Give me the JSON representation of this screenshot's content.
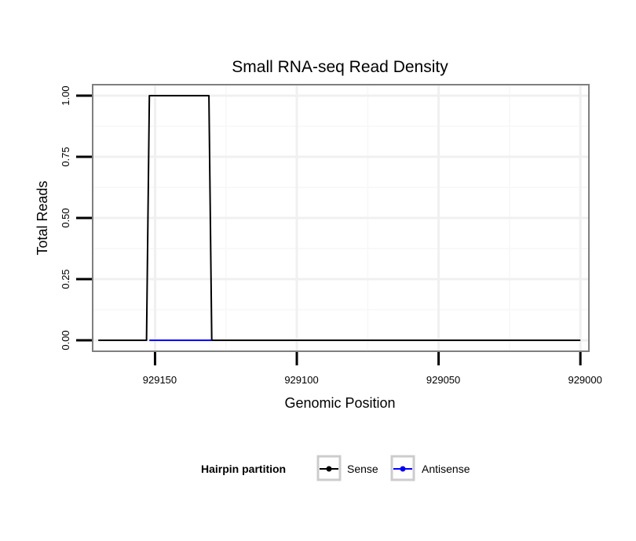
{
  "chart_data": {
    "type": "line",
    "title": "Small RNA-seq Read Density",
    "xlabel": "Genomic Position",
    "ylabel": "Total Reads",
    "xlim": [
      929172,
      928997
    ],
    "x_reversed": true,
    "ylim": [
      -0.045,
      1.045
    ],
    "x_ticks": [
      929150,
      929100,
      929050,
      929000
    ],
    "x_tick_labels": [
      "929150",
      "929100",
      "929050",
      "929000"
    ],
    "y_ticks": [
      0,
      0.25,
      0.5,
      0.75,
      1
    ],
    "y_tick_labels": [
      "0.00",
      "0.25",
      "0.50",
      "0.75",
      "1.00"
    ],
    "grid": true,
    "legend": {
      "title": "Hairpin partition",
      "position": "bottom",
      "entries": [
        "Sense",
        "Antisense"
      ]
    },
    "series": [
      {
        "name": "Sense",
        "color": "#000000",
        "x": [
          929170,
          929153,
          929152,
          929131,
          929130,
          929000
        ],
        "y": [
          0,
          0,
          1,
          1,
          0,
          0
        ]
      },
      {
        "name": "Antisense",
        "color": "#0000ff",
        "x": [
          929152,
          929130
        ],
        "y": [
          0,
          0
        ]
      }
    ]
  }
}
